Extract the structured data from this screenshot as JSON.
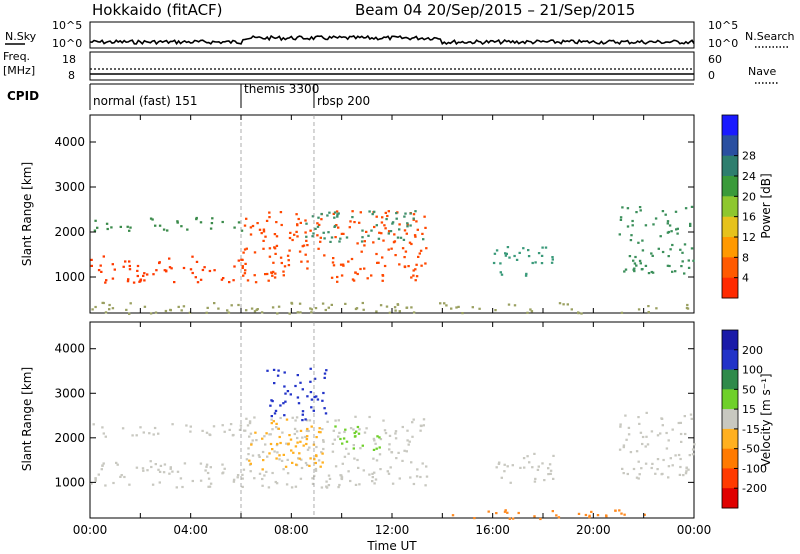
{
  "header": {
    "title": "Hokkaido (fitACF)",
    "beam_range": "Beam 04  20/Sep/2015 – 21/Sep/2015"
  },
  "strip_labels": {
    "nsky": "N.Sky",
    "nsky_top": "10^5",
    "nsky_bottom": "10^0",
    "nsearch": "N.Search",
    "freq_line1": "Freq.",
    "freq_line2": "[MHz]",
    "freq_top": "18",
    "freq_bottom": "8",
    "nave": "Nave",
    "nave_top": "60",
    "nave_bottom": "0",
    "cpid": "CPID"
  },
  "cpid_modes": [
    {
      "label": "normal (fast) 151",
      "start_hour": 0
    },
    {
      "label": "themis 3300",
      "start_hour": 6
    },
    {
      "label": "rbsp 200",
      "start_hour": 8.9
    }
  ],
  "chart_data": [
    {
      "type": "heatmap",
      "name": "power",
      "ylabel": "Slant Range [km]",
      "xlabel": "",
      "x_range_hours": [
        0,
        24
      ],
      "ylim": [
        200,
        4600
      ],
      "yticks": [
        1000,
        2000,
        3000,
        4000
      ],
      "colorbar": {
        "label": "Power [dB]",
        "ticks": [
          "4",
          "8",
          "12",
          "16",
          "20",
          "24",
          "28"
        ],
        "colors": [
          "#1a1aff",
          "#2a4fa0",
          "#2e7e6e",
          "#3a9a3a",
          "#8ec72e",
          "#e6c21c",
          "#ff9900",
          "#ff5a00",
          "#ff2a00"
        ]
      },
      "regions": [
        {
          "x0": 0,
          "x1": 6,
          "y0": 900,
          "y1": 1500,
          "color": "#ff3a00"
        },
        {
          "x0": 0.1,
          "x1": 6,
          "y0": 2050,
          "y1": 2350,
          "color": "#3a8a4a"
        },
        {
          "x0": 6,
          "x1": 13.4,
          "y0": 900,
          "y1": 2500,
          "color": "#ff4800"
        },
        {
          "x0": 8.5,
          "x1": 13.4,
          "y0": 1800,
          "y1": 2500,
          "color": "#3e8f6a"
        },
        {
          "x0": 16,
          "x1": 18.5,
          "y0": 1000,
          "y1": 1700,
          "color": "#3a9a7a"
        },
        {
          "x0": 21,
          "x1": 24,
          "y0": 1100,
          "y1": 2600,
          "color": "#3b8f5a"
        },
        {
          "x0": 0,
          "x1": 24,
          "y0": 200,
          "y1": 450,
          "color": "#9aa060"
        }
      ]
    },
    {
      "type": "heatmap",
      "name": "velocity",
      "ylabel": "Slant Range [km]",
      "xlabel": "Time UT",
      "x_range_hours": [
        0,
        24
      ],
      "xticks": [
        "00:00",
        "04:00",
        "08:00",
        "12:00",
        "16:00",
        "20:00",
        "00:00"
      ],
      "ylim": [
        200,
        4600
      ],
      "yticks": [
        1000,
        2000,
        3000,
        4000
      ],
      "colorbar": {
        "label": "Velocity [m s⁻¹]",
        "ticks": [
          "200",
          "100",
          "50",
          "15",
          "-15",
          "-50",
          "-100",
          "-200"
        ],
        "colors": [
          "#1a1aa8",
          "#2233c8",
          "#2f8a4a",
          "#6fd02a",
          "#c8c8c0",
          "#ffb020",
          "#ff7a00",
          "#ff3a00",
          "#e00000"
        ]
      },
      "regions": [
        {
          "x0": 0,
          "x1": 6,
          "y0": 900,
          "y1": 1500,
          "color": "#c8c8c0"
        },
        {
          "x0": 0.1,
          "x1": 6,
          "y0": 2050,
          "y1": 2350,
          "color": "#c8c8c0"
        },
        {
          "x0": 6,
          "x1": 13.4,
          "y0": 900,
          "y1": 2500,
          "color": "#c8c8c0"
        },
        {
          "x0": 6.2,
          "x1": 9.2,
          "y0": 1300,
          "y1": 2450,
          "color": "#ffb020"
        },
        {
          "x0": 9.6,
          "x1": 11.5,
          "y0": 1700,
          "y1": 2300,
          "color": "#6fd02a"
        },
        {
          "x0": 7.0,
          "x1": 9.4,
          "y0": 2400,
          "y1": 3600,
          "color": "#2233c8"
        },
        {
          "x0": 16,
          "x1": 18.5,
          "y0": 1000,
          "y1": 1700,
          "color": "#c8c8c0"
        },
        {
          "x0": 21,
          "x1": 24,
          "y0": 1100,
          "y1": 2600,
          "color": "#c8c8c0"
        },
        {
          "x0": 14,
          "x1": 22,
          "y0": 200,
          "y1": 420,
          "color": "#ff8a20"
        }
      ]
    }
  ]
}
